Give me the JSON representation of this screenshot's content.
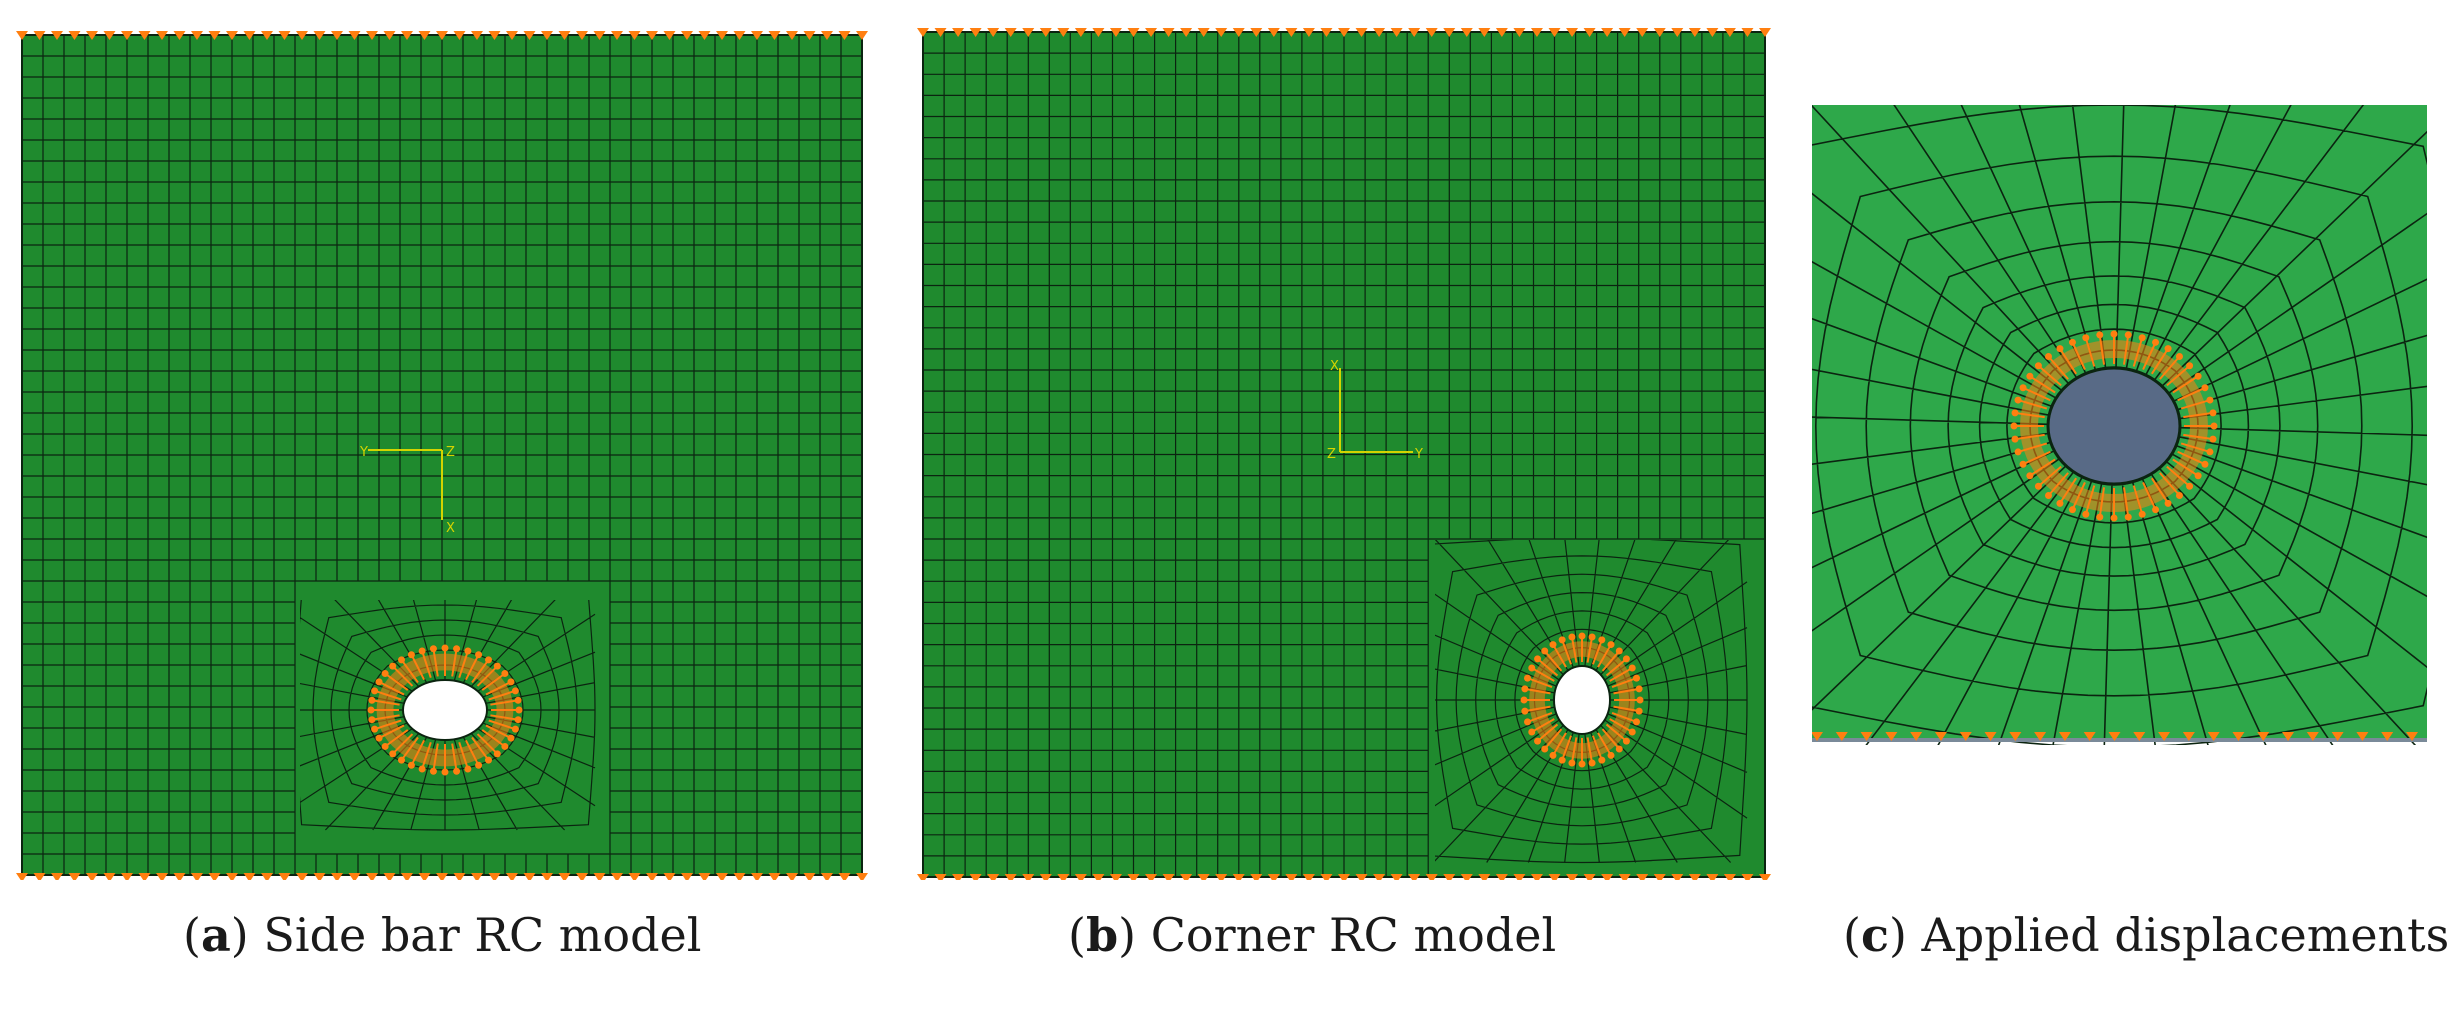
{
  "figure": {
    "panels": [
      {
        "id": "a",
        "letter": "a",
        "caption": "Side bar RC model",
        "axis_labels": [
          "Y",
          "Z",
          "X"
        ]
      },
      {
        "id": "b",
        "letter": "b",
        "caption": "Corner RC model",
        "axis_labels": [
          "X",
          "Z",
          "Y"
        ]
      },
      {
        "id": "c",
        "letter": "c",
        "caption": "Applied displacements"
      }
    ]
  },
  "colors": {
    "mesh_fill_dark": "#1f8a2e",
    "mesh_fill_light": "#2ea84a",
    "mesh_line": "#0b2410",
    "boundary_marker": "#ff7f10",
    "axis_triad": "#d4d400",
    "bolt": "#586a86"
  }
}
